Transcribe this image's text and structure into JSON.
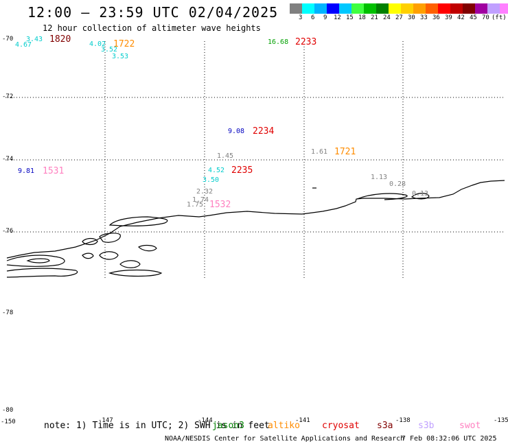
{
  "title": "12:00 – 23:59 UTC 02/04/2025",
  "subtitle": "12 hour collection of altimeter wave heights",
  "legend": {
    "colors": [
      "#808080",
      "#00ffff",
      "#00b4ff",
      "#0000ff",
      "#00c8ff",
      "#40ff40",
      "#00c000",
      "#008000",
      "#ffff00",
      "#ffd000",
      "#ffa000",
      "#ff6000",
      "#ff0000",
      "#c00000",
      "#800000",
      "#a000a0",
      "#c0a0ff",
      "#ff80ff",
      "#000000"
    ],
    "labels": [
      "3",
      "6",
      "9",
      "12",
      "15",
      "18",
      "21",
      "24",
      "27",
      "30",
      "33",
      "36",
      "39",
      "42",
      "45",
      "70",
      "(ft)"
    ]
  },
  "axes": {
    "lat_labels": [
      "-70",
      "-72",
      "-74",
      "-76",
      "-78",
      "-80"
    ],
    "lon_labels": [
      "-150",
      "-147",
      "-144",
      "-141",
      "-138",
      "-135"
    ]
  },
  "observations": [
    {
      "text": "1820",
      "color": "#800000",
      "kind": "time"
    },
    {
      "text": "3.43",
      "color": "#00cccc",
      "kind": "swh"
    },
    {
      "text": "4.67",
      "color": "#00cccc",
      "kind": "swh"
    },
    {
      "text": "4.02",
      "color": "#00cccc",
      "kind": "swh"
    },
    {
      "text": "3.52",
      "color": "#00cccc",
      "kind": "swh"
    },
    {
      "text": "1722",
      "color": "#ff8c00",
      "kind": "time"
    },
    {
      "text": "3.53",
      "color": "#00cccc",
      "kind": "swh"
    },
    {
      "text": "16.68",
      "color": "#00a000",
      "kind": "swh"
    },
    {
      "text": "2233",
      "color": "#e00000",
      "kind": "time"
    },
    {
      "text": "9.08",
      "color": "#0000c0",
      "kind": "swh"
    },
    {
      "text": "2234",
      "color": "#e00000",
      "kind": "time"
    },
    {
      "text": "1.45",
      "color": "#808080",
      "kind": "swh"
    },
    {
      "text": "1.61",
      "color": "#808080",
      "kind": "swh"
    },
    {
      "text": "1721",
      "color": "#ff8c00",
      "kind": "time"
    },
    {
      "text": "9.81",
      "color": "#0000c0",
      "kind": "swh"
    },
    {
      "text": "1531",
      "color": "#ff80c0",
      "kind": "time"
    },
    {
      "text": "4.52",
      "color": "#00cccc",
      "kind": "swh"
    },
    {
      "text": "2235",
      "color": "#e00000",
      "kind": "time"
    },
    {
      "text": "3.50",
      "color": "#00cccc",
      "kind": "swh"
    },
    {
      "text": "1.13",
      "color": "#808080",
      "kind": "swh"
    },
    {
      "text": "0.28",
      "color": "#808080",
      "kind": "swh"
    },
    {
      "text": "0.13",
      "color": "#808080",
      "kind": "swh"
    },
    {
      "text": "2.32",
      "color": "#808080",
      "kind": "swh"
    },
    {
      "text": "1.74",
      "color": "#808080",
      "kind": "swh"
    },
    {
      "text": "1.75",
      "color": "#808080",
      "kind": "swh"
    },
    {
      "text": "1532",
      "color": "#ff80c0",
      "kind": "time"
    }
  ],
  "footer": {
    "note": "note:  1) Time is in UTC;  2) SWH is in feet",
    "satellites": [
      {
        "name": "jason3",
        "color": "#008000"
      },
      {
        "name": "altiko",
        "color": "#ff8c00"
      },
      {
        "name": "cryosat",
        "color": "#e00000"
      },
      {
        "name": "s3a",
        "color": "#800000"
      },
      {
        "name": "s3b",
        "color": "#c0a0ff"
      },
      {
        "name": "swot",
        "color": "#ff80c0"
      }
    ],
    "credit": "NOAA/NESDIS Center for Satellite Applications and Research",
    "generated": "7 Feb 08:32:06 UTC 2025"
  }
}
